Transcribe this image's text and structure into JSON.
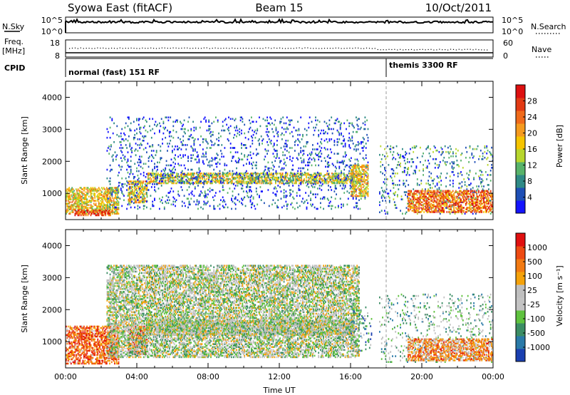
{
  "header": {
    "station": "Syowa East (fitACF)",
    "beam": "Beam 15",
    "date": "10/Oct/2011"
  },
  "aux": {
    "nsky_label": "N.Sky",
    "nsearch_label": "N.Search",
    "noise_top": "10^5",
    "noise_bottom": "10^0",
    "freq_label_1": "Freq.",
    "freq_label_2": "[MHz]",
    "freq_top": "18",
    "freq_bottom": "8",
    "nave_label": "Nave",
    "nave_top": "60",
    "nave_bottom": "0",
    "cpid_label": "CPID",
    "cpid_segments": [
      {
        "name": "normal (fast) 151 RF",
        "start_hour": 0.0,
        "end_hour": 18.0
      },
      {
        "name": "themis 3300 RF",
        "start_hour": 18.0,
        "end_hour": 24.0
      }
    ]
  },
  "chart_data": [
    {
      "type": "heatmap",
      "title": "Power",
      "ylabel": "Slant Range [km]",
      "xlabel": "",
      "xlim_hours": [
        0,
        24
      ],
      "ylim": [
        180,
        4500
      ],
      "yticks": [
        1000,
        2000,
        3000,
        4000
      ],
      "colorbar": {
        "label": "Power [dB]",
        "ticks": [
          "4",
          "8",
          "12",
          "16",
          "20",
          "24",
          "28"
        ],
        "colors": [
          "#1414ff",
          "#1e4fb6",
          "#2f8a86",
          "#58b36a",
          "#b7d62d",
          "#f5c400",
          "#f59a1e",
          "#f06a1a",
          "#e23a14",
          "#dd1010"
        ]
      },
      "echo_regions": [
        {
          "start_hour": 0.0,
          "end_hour": 3.0,
          "range_min": 350,
          "range_max": 1200,
          "level": 0.55
        },
        {
          "start_hour": 0.5,
          "end_hour": 2.6,
          "range_min": 300,
          "range_max": 500,
          "level": 0.85
        },
        {
          "start_hour": 3.5,
          "end_hour": 4.6,
          "range_min": 700,
          "range_max": 1400,
          "level": 0.55
        },
        {
          "start_hour": 4.6,
          "end_hour": 16.2,
          "range_min": 1300,
          "range_max": 1650,
          "level": 0.5
        },
        {
          "start_hour": 2.3,
          "end_hour": 17.0,
          "range_min": 500,
          "range_max": 3400,
          "level": 0.15
        },
        {
          "start_hour": 16.0,
          "end_hour": 17.0,
          "range_min": 900,
          "range_max": 1900,
          "level": 0.55
        },
        {
          "start_hour": 17.6,
          "end_hour": 24.0,
          "range_min": 350,
          "range_max": 2500,
          "level": 0.25
        },
        {
          "start_hour": 19.2,
          "end_hour": 24.0,
          "range_min": 400,
          "range_max": 1100,
          "level": 0.75
        }
      ]
    },
    {
      "type": "heatmap",
      "title": "Velocity",
      "ylabel": "Slant Range [km]",
      "xlabel": "Time UT",
      "xlim_hours": [
        0,
        24
      ],
      "ylim": [
        180,
        4500
      ],
      "yticks": [
        1000,
        2000,
        3000,
        4000
      ],
      "xticks": [
        "00:00",
        "04:00",
        "08:00",
        "12:00",
        "16:00",
        "20:00",
        "00:00"
      ],
      "colorbar": {
        "label": "Velocity [m s⁻¹]",
        "ticks": [
          "1000",
          "500",
          "100",
          "25",
          "-25",
          "-100",
          "-500",
          "-1000"
        ],
        "colors": [
          "#1a3fb0",
          "#2a7aa8",
          "#3b8d64",
          "#5fc23e",
          "#c3c3c3",
          "#bfbfbf",
          "#f5a20a",
          "#f27a12",
          "#ee4a12",
          "#e01010"
        ]
      },
      "echo_regions": [
        {
          "start_hour": 0.0,
          "end_hour": 3.0,
          "range_min": 300,
          "range_max": 1500,
          "level": 0.8
        },
        {
          "start_hour": 3.5,
          "end_hour": 4.6,
          "range_min": 600,
          "range_max": 1500,
          "level": 0.8
        },
        {
          "start_hour": 4.6,
          "end_hour": 16.2,
          "range_min": 1200,
          "range_max": 1700,
          "level": 0.45
        },
        {
          "start_hour": 2.3,
          "end_hour": 16.5,
          "range_min": 500,
          "range_max": 3400,
          "level": 0.45
        },
        {
          "start_hour": 16.0,
          "end_hour": 17.2,
          "range_min": 700,
          "range_max": 2100,
          "level": 0.25
        },
        {
          "start_hour": 17.6,
          "end_hour": 24.0,
          "range_min": 350,
          "range_max": 2500,
          "level": 0.35
        },
        {
          "start_hour": 19.2,
          "end_hour": 24.0,
          "range_min": 400,
          "range_max": 1100,
          "level": 0.7
        }
      ]
    }
  ]
}
